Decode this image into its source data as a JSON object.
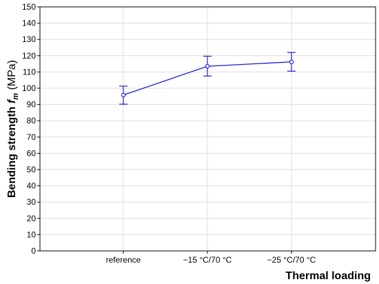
{
  "chart_data": {
    "type": "line",
    "categories": [
      "reference",
      "−15 °C/70 °C",
      "−25 °C/70 °C"
    ],
    "series": [
      {
        "values": [
          95.8,
          113.5,
          116.2
        ],
        "error_low": [
          90.2,
          107.5,
          110.5
        ],
        "error_high": [
          101.3,
          119.7,
          122.0
        ],
        "color": "#1a1adc"
      }
    ],
    "xlabel": "Thermal loading",
    "ylabel": {
      "prefix": "Bending strength ",
      "symbol": "f",
      "subscript": "m",
      "unit": " (MPa)"
    },
    "ylim": [
      0,
      150
    ],
    "yticks": [
      0,
      10,
      20,
      30,
      40,
      50,
      60,
      70,
      80,
      90,
      100,
      110,
      120,
      130,
      140,
      150
    ],
    "grid": true
  }
}
